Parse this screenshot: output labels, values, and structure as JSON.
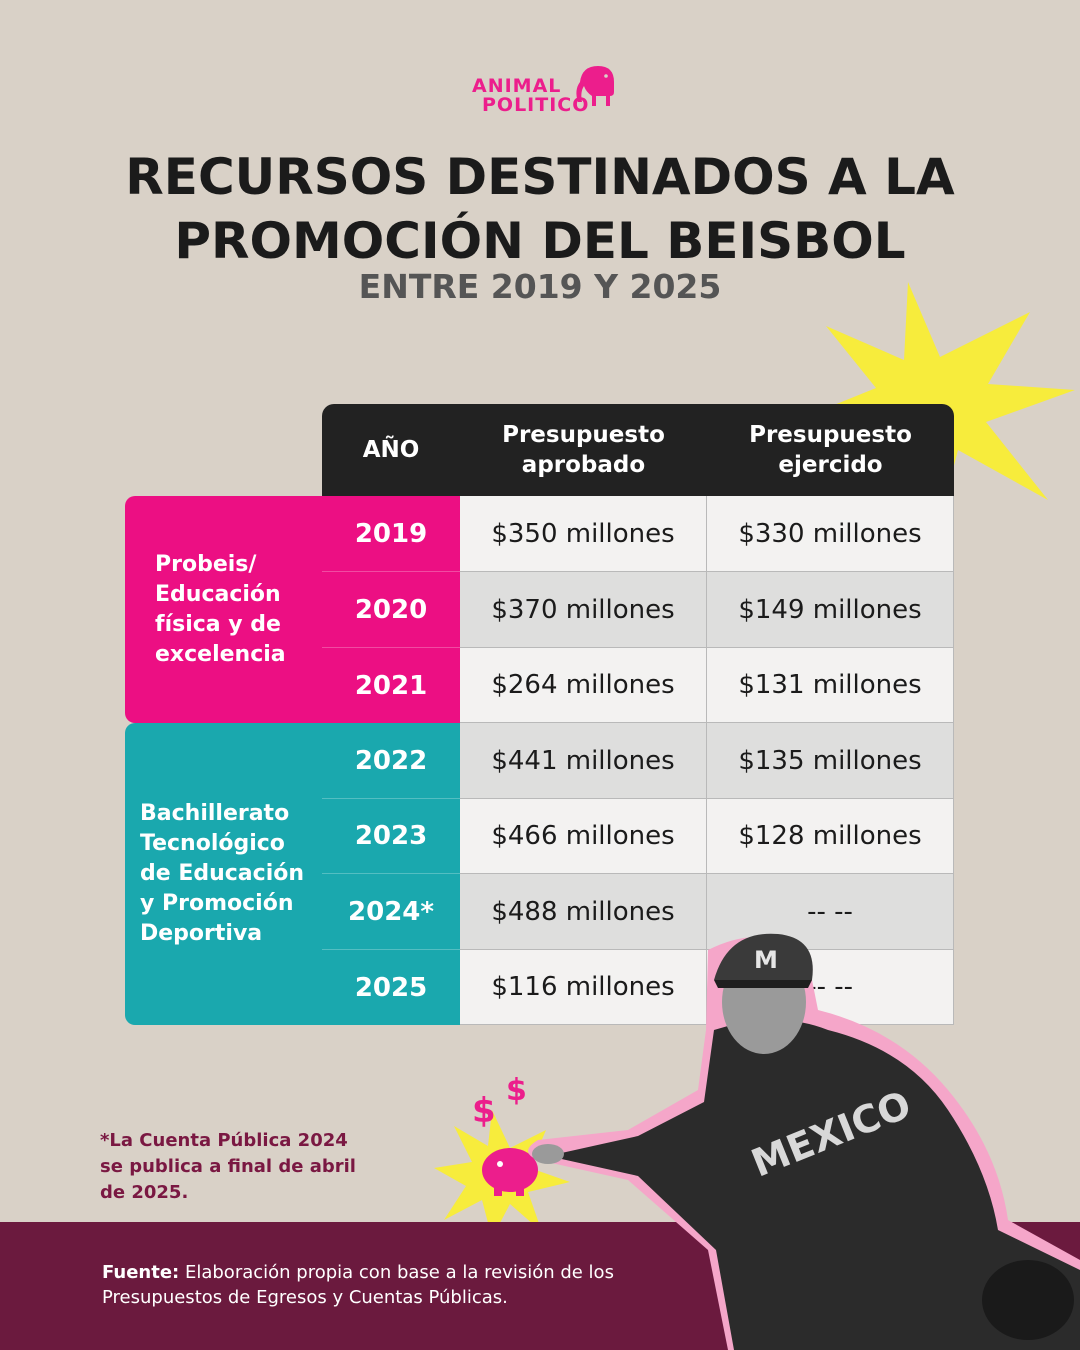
{
  "brand": {
    "line1": "ANIMAL",
    "line2": "POLITICO",
    "color": "#ec1e8c"
  },
  "title": {
    "line1": "RECURSOS DESTINADOS A LA",
    "line2": "PROMOCIÓN DEL BEISBOL",
    "subtitle": "ENTRE 2019 Y 2025"
  },
  "table": {
    "headers": {
      "year": "AÑO",
      "approved": "Presupuesto aprobado",
      "spent": "Presupuesto ejercido"
    },
    "groups": [
      {
        "label": "Probeis/ Educación física y de excelencia",
        "color": "#ec0f83"
      },
      {
        "label": "Bachillerato Tecnológico de Educación y Promoción Deportiva",
        "color": "#1aa8ae"
      }
    ],
    "rows": [
      {
        "year": "2019",
        "approved": "$350 millones",
        "spent": "$330 millones"
      },
      {
        "year": "2020",
        "approved": "$370 millones",
        "spent": "$149 millones"
      },
      {
        "year": "2021",
        "approved": "$264 millones",
        "spent": "$131 millones"
      },
      {
        "year": "2022",
        "approved": "$441 millones",
        "spent": "$135 millones"
      },
      {
        "year": "2023",
        "approved": "$466 millones",
        "spent": "$128 millones"
      },
      {
        "year": "2024*",
        "approved": "$488 millones",
        "spent": "-- --"
      },
      {
        "year": "2025",
        "approved": "$116 millones",
        "spent": "-- --"
      }
    ]
  },
  "note": "*La Cuenta Pública 2024 se publica a final de abril de 2025.",
  "footer": {
    "label": "Fuente:",
    "text": " Elaboración propia con base a la revisión de los Presupuestos de Egresos y Cuentas Públicas."
  },
  "decorations": {
    "starburst_color": "#f7ec3c",
    "dollar_icon_color": "#ec1e8c",
    "jacket_text": "MEXICO",
    "cap_letter": "M"
  }
}
